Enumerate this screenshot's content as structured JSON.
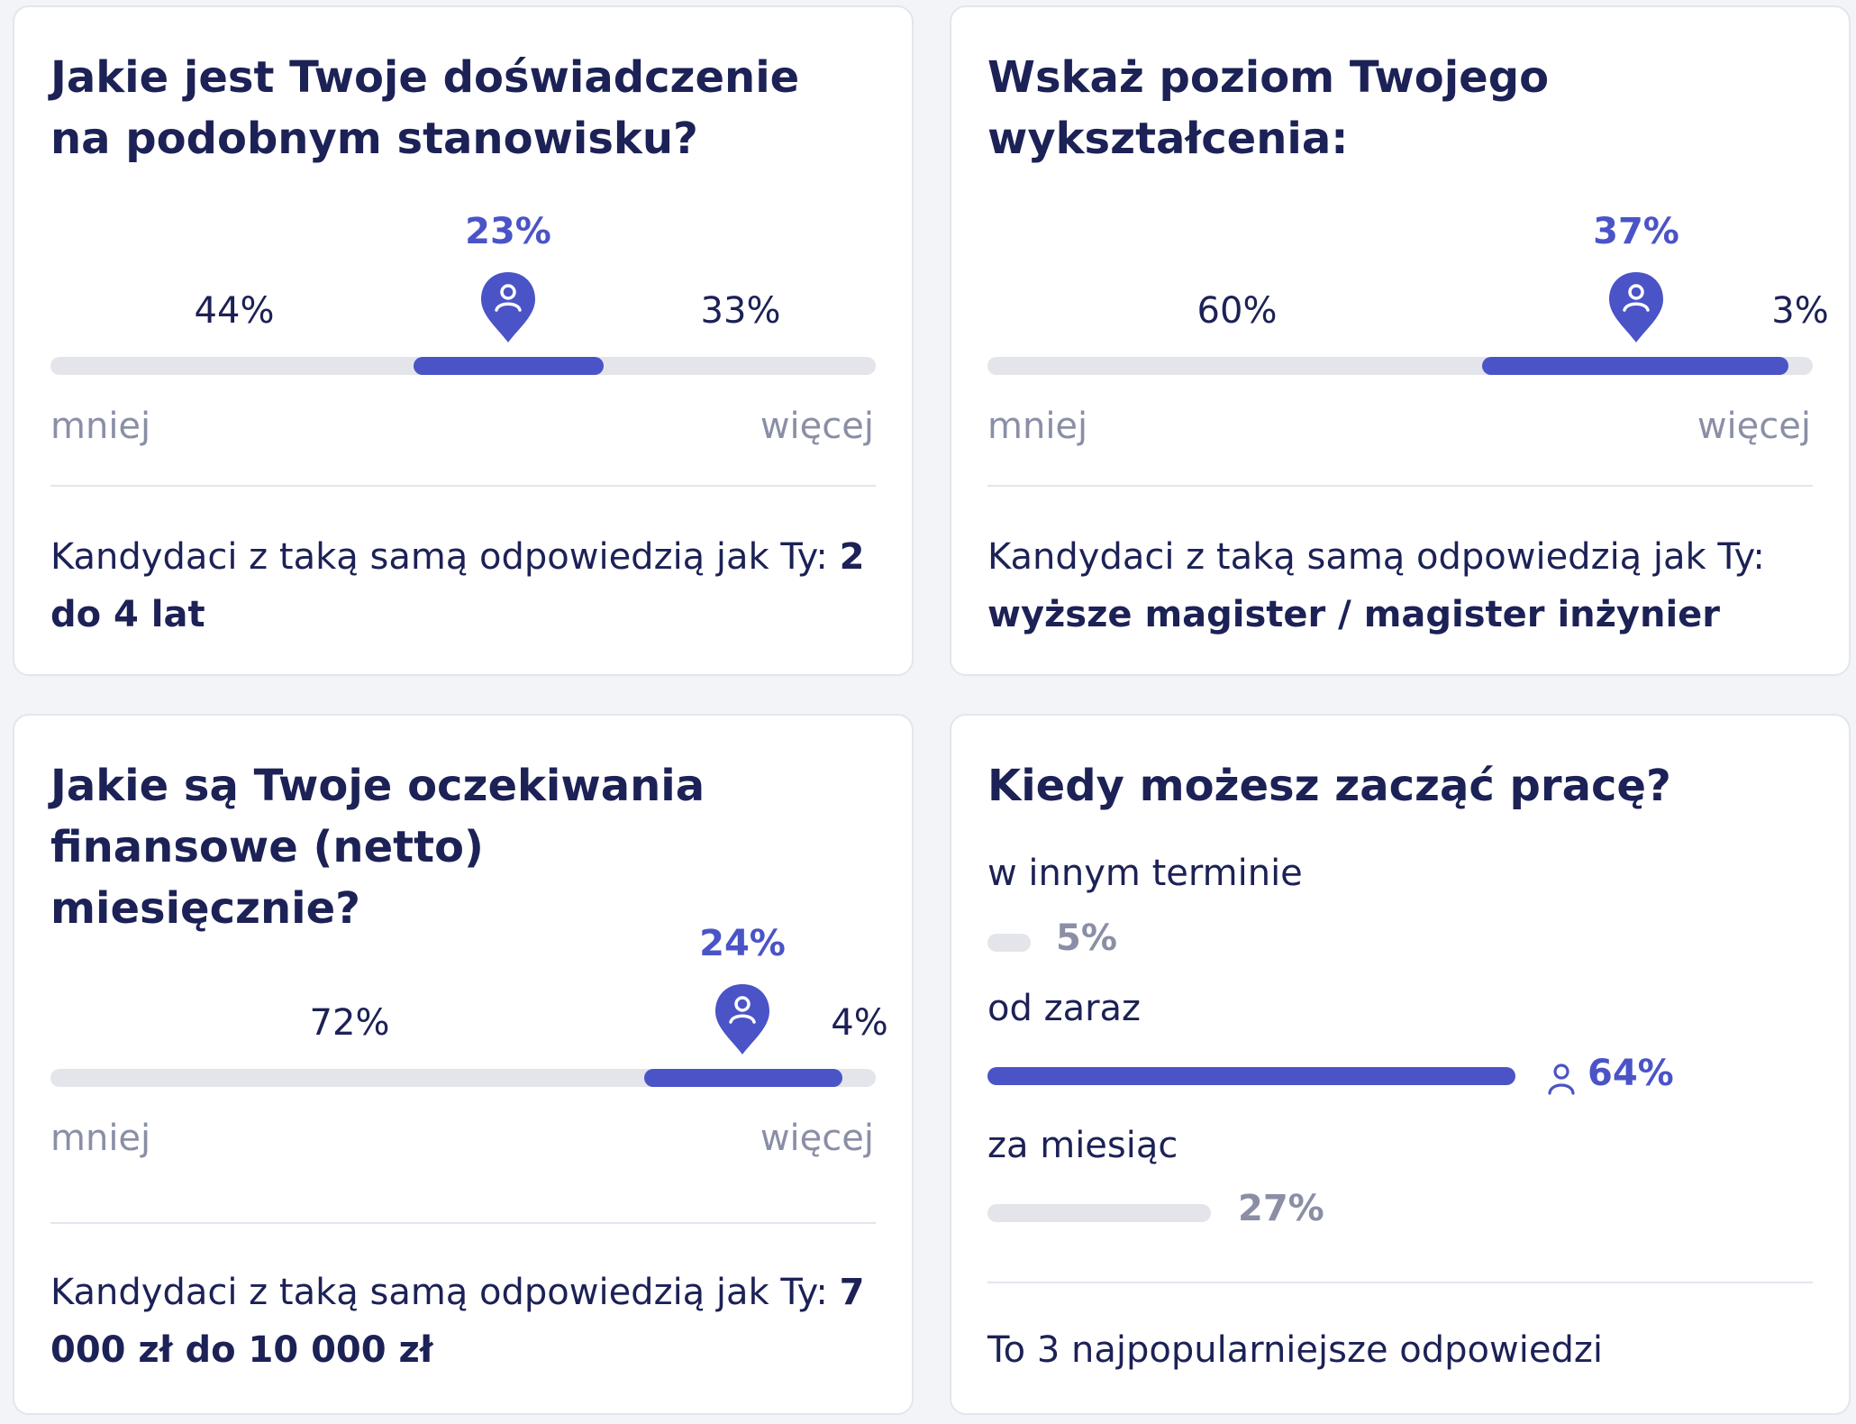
{
  "cards": {
    "experience": {
      "title": "Jakie jest Twoje doświadczenie na podobnym stanowisku?",
      "segments": [
        44,
        23,
        33
      ],
      "active_segment": 1,
      "labels": [
        "44%",
        "23%",
        "33%"
      ],
      "scale_min": "mniej",
      "scale_max": "więcej",
      "summary_prefix": "Kandydaci z taką samą odpowiedzią jak Ty:",
      "summary_value": "2 do 4 lat"
    },
    "education": {
      "title": "Wskaż poziom Twojego wykształcenia:",
      "segments": [
        60,
        37,
        3
      ],
      "active_segment": 1,
      "labels": [
        "60%",
        "37%",
        "3%"
      ],
      "scale_min": "mniej",
      "scale_max": "więcej",
      "summary_prefix": "Kandydaci z taką samą odpowiedzią jak Ty:",
      "summary_value": "wyższe magister / magister inżynier"
    },
    "salary": {
      "title": "Jakie są Twoje oczekiwania finansowe (netto) miesięcznie?",
      "segments": [
        72,
        24,
        4
      ],
      "active_segment": 1,
      "labels": [
        "72%",
        "24%",
        "4%"
      ],
      "scale_min": "mniej",
      "scale_max": "więcej",
      "summary_prefix": "Kandydaci z taką samą odpowiedzią jak Ty:",
      "summary_value": "7 000 zł do 10 000 zł"
    },
    "start": {
      "title": "Kiedy możesz zacząć pracę?",
      "options": [
        {
          "label": "w innym terminie",
          "value": 5,
          "pct": "5%",
          "selected": false
        },
        {
          "label": "od zaraz",
          "value": 64,
          "pct": "64%",
          "selected": true
        },
        {
          "label": "za miesiąc",
          "value": 27,
          "pct": "27%",
          "selected": false
        }
      ],
      "footer": "To 3 najpopularniejsze odpowiedzi"
    }
  },
  "colors": {
    "accent": "#4a54c7",
    "text": "#1c2156",
    "muted": "#8a8fa6",
    "track": "#e4e5ea",
    "border": "#e3e5ee"
  },
  "icons": {
    "pin": "location-pin-person-icon",
    "person": "person-icon"
  }
}
